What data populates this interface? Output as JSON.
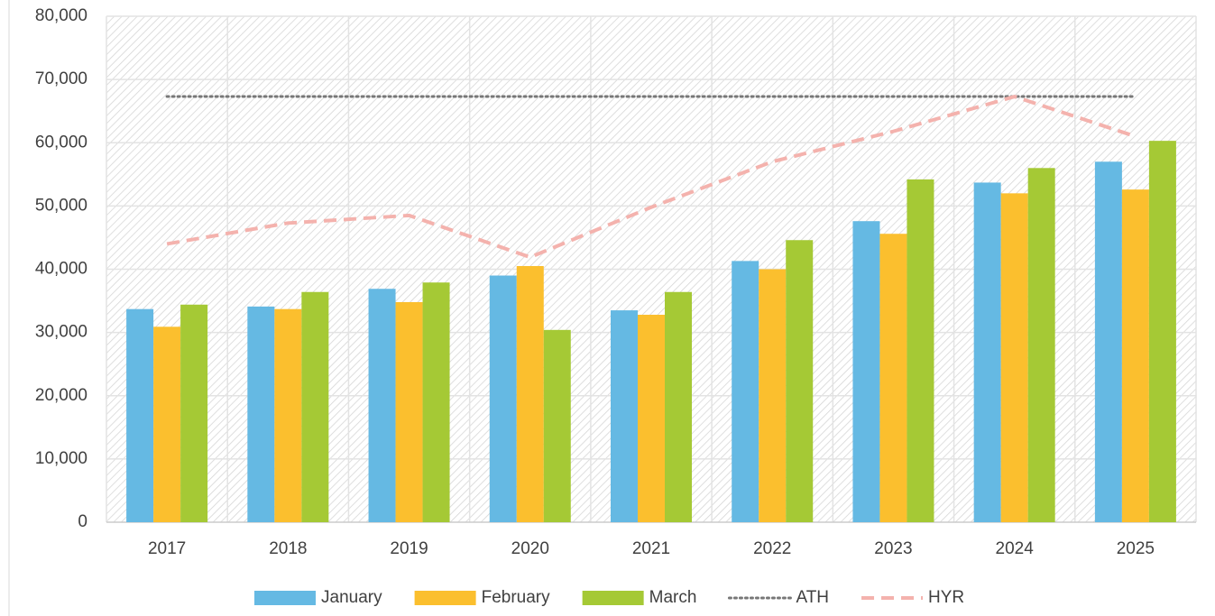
{
  "chart_data": {
    "type": "bar",
    "categories": [
      "2017",
      "2018",
      "2019",
      "2020",
      "2021",
      "2022",
      "2023",
      "2024",
      "2025"
    ],
    "series": [
      {
        "name": "January",
        "color": "#65b9e3",
        "values": [
          33700,
          34100,
          36900,
          39000,
          33500,
          41300,
          47600,
          53700,
          57000
        ]
      },
      {
        "name": "February",
        "color": "#fbbf2e",
        "values": [
          30900,
          33700,
          34800,
          40500,
          32800,
          40000,
          45600,
          52000,
          52600
        ]
      },
      {
        "name": "March",
        "color": "#a5c935",
        "values": [
          34400,
          36400,
          37900,
          30400,
          36400,
          44600,
          54200,
          56000,
          60300
        ]
      },
      {
        "name": "ATH",
        "color": "#777777",
        "type": "line",
        "style": "dotted",
        "values": [
          67300,
          67300,
          67300,
          67300,
          67300,
          67300,
          67300,
          67300,
          67300
        ]
      },
      {
        "name": "HYR",
        "color": "#f4b2ad",
        "type": "line",
        "style": "dashed",
        "values": [
          44000,
          47300,
          48500,
          41900,
          49800,
          57000,
          61800,
          67300,
          61000
        ]
      }
    ],
    "ylim": [
      0,
      80000
    ],
    "yticks": [
      0,
      {
        "value": 10000,
        "label": "10,000"
      },
      {
        "value": 20000,
        "label": "20,000"
      },
      {
        "value": 30000,
        "label": "30,000"
      },
      {
        "value": 40000,
        "label": "40,000"
      },
      {
        "value": 50000,
        "label": "50,000"
      },
      {
        "value": 60000,
        "label": "60,000"
      },
      {
        "value": 70000,
        "label": "70,000"
      },
      {
        "value": 80000,
        "label": "80,000"
      }
    ],
    "grid": true,
    "legend": "bottom"
  }
}
